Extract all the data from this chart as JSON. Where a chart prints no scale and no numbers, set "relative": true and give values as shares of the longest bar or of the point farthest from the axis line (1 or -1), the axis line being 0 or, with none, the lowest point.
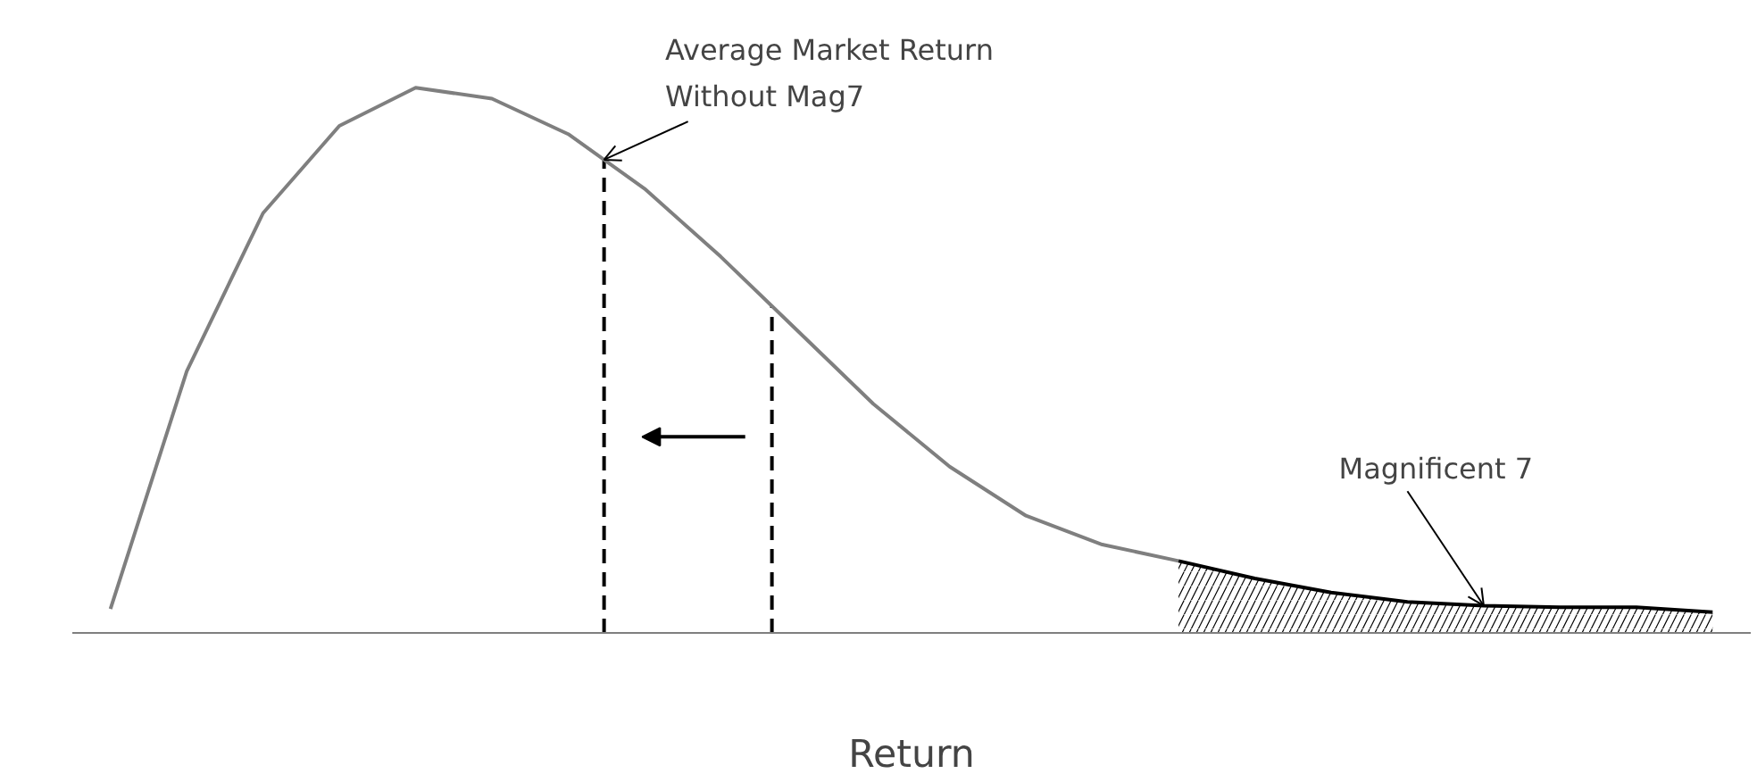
{
  "chart_data": {
    "type": "line",
    "relative": true,
    "xlabel": "Return",
    "categories": [
      null,
      null,
      null,
      null,
      null,
      null,
      null,
      null,
      null,
      null,
      null,
      null,
      null,
      null,
      null,
      null,
      null,
      null,
      null,
      null,
      null,
      null
    ],
    "series": [
      {
        "color": "#7f7f7f",
        "values": [
          0.044,
          0.48,
          0.77,
          0.93,
          1,
          0.98,
          0.915,
          0.815,
          0.69,
          0.555,
          0.42,
          0.305,
          0.215,
          0.162,
          0.132,
          null,
          null,
          null,
          null,
          null,
          null,
          null
        ]
      },
      {
        "type": "area",
        "color": "#000000",
        "values": [
          null,
          null,
          null,
          null,
          null,
          null,
          null,
          null,
          null,
          null,
          null,
          null,
          null,
          null,
          0.132,
          0.1,
          0.074,
          0.057,
          0.05,
          0.047,
          0.047,
          0.038
        ]
      }
    ],
    "annotations": [
      "Average Market Return\nWithout Mag7",
      "Magnificent 7"
    ],
    "grid": false
  }
}
